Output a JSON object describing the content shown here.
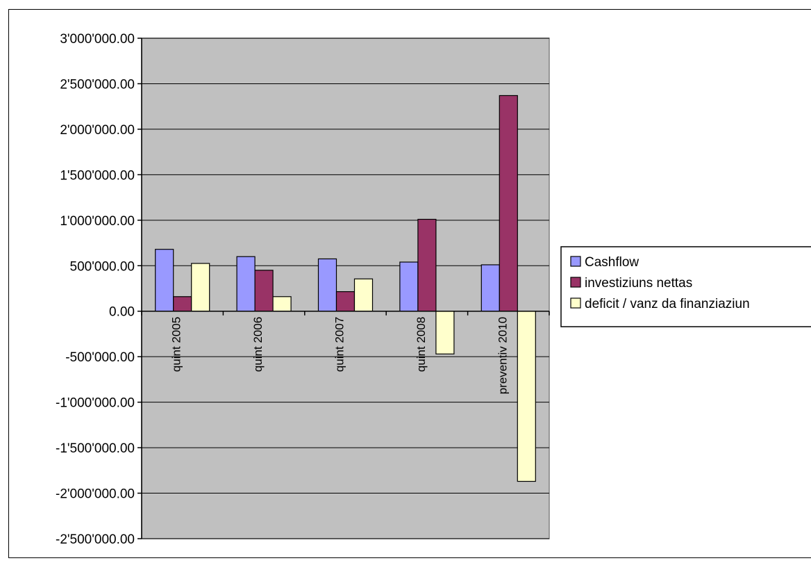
{
  "chart_data": {
    "type": "bar",
    "categories": [
      "quint 2005",
      "quint 2006",
      "quint 2007",
      "quint 2008",
      "preventiv 2010"
    ],
    "series": [
      {
        "name": "Cashflow",
        "color": "#9999ff",
        "values": [
          680000,
          600000,
          575000,
          540000,
          510000
        ]
      },
      {
        "name": "investiziuns nettas",
        "color": "#993366",
        "values": [
          160000,
          450000,
          215000,
          1010000,
          2370000
        ]
      },
      {
        "name": "deficit / vanz da finanziaziun",
        "color": "#ffffcc",
        "values": [
          525000,
          160000,
          355000,
          -470000,
          -1870000
        ]
      }
    ],
    "ylim": [
      -2500000,
      3000000
    ],
    "yticks": [
      3000000,
      2500000,
      2000000,
      1500000,
      1000000,
      500000,
      0,
      -500000,
      -1000000,
      -1500000,
      -2000000,
      -2500000
    ],
    "ytick_labels": [
      "3'000'000.00",
      "2'500'000.00",
      "2'000'000.00",
      "1'500'000.00",
      "1'000'000.00",
      "500'000.00",
      "0.00",
      "-500'000.00",
      "-1'000'000.00",
      "-1'500'000.00",
      "-2'000'000.00",
      "-2'500'000.00"
    ],
    "grid": true,
    "plot_background": "#c0c0c0",
    "legend_position": "right"
  }
}
